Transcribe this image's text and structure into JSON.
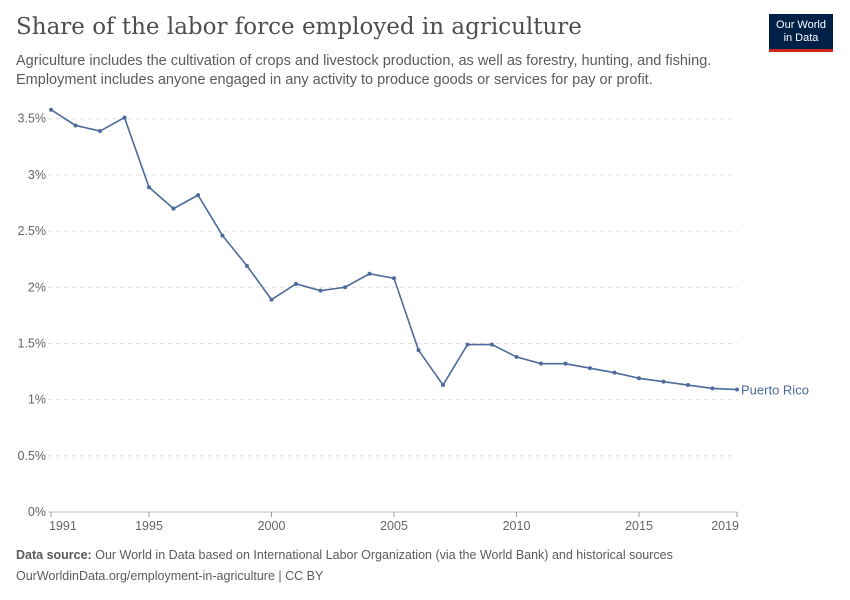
{
  "title": "Share of the labor force employed in agriculture",
  "subtitle": "Agriculture includes the cultivation of crops and livestock production, as well as forestry, hunting, and fishing. Employment includes anyone engaged in any activity to produce goods or services for pay or profit.",
  "logo": {
    "line1": "Our World",
    "line2": "in Data"
  },
  "footer": {
    "source_label": "Data source:",
    "source_text": "Our World in Data based on International Labor Organization (via the World Bank) and historical sources",
    "url": "OurWorldinData.org/employment-in-agriculture | CC BY"
  },
  "colors": {
    "series": "#4c6a9c",
    "grid": "#dddddd",
    "axis_text": "#666666"
  },
  "chart_data": {
    "type": "line",
    "title": "Share of the labor force employed in agriculture",
    "xlabel": "",
    "ylabel": "",
    "xlim": [
      1991,
      2019
    ],
    "ylim": [
      0,
      3.5
    ],
    "grid": true,
    "x_ticks": [
      1991,
      1995,
      2000,
      2005,
      2010,
      2015,
      2019
    ],
    "y_ticks": [
      0,
      0.5,
      1,
      1.5,
      2,
      2.5,
      3,
      3.5
    ],
    "y_tick_labels": [
      "0%",
      "0.5%",
      "1%",
      "1.5%",
      "2%",
      "2.5%",
      "3%",
      "3.5%"
    ],
    "series": [
      {
        "name": "Puerto Rico",
        "x": [
          1991,
          1992,
          1993,
          1994,
          1995,
          1996,
          1997,
          1998,
          1999,
          2000,
          2001,
          2002,
          2003,
          2004,
          2005,
          2006,
          2007,
          2008,
          2009,
          2010,
          2011,
          2012,
          2013,
          2014,
          2015,
          2016,
          2017,
          2018,
          2019
        ],
        "values": [
          3.58,
          3.44,
          3.39,
          3.51,
          2.89,
          2.7,
          2.82,
          2.46,
          2.19,
          1.89,
          2.03,
          1.97,
          2.0,
          2.12,
          2.08,
          1.44,
          1.13,
          1.49,
          1.49,
          1.38,
          1.32,
          1.32,
          1.28,
          1.24,
          1.19,
          1.16,
          1.13,
          1.1,
          1.09
        ]
      }
    ]
  }
}
